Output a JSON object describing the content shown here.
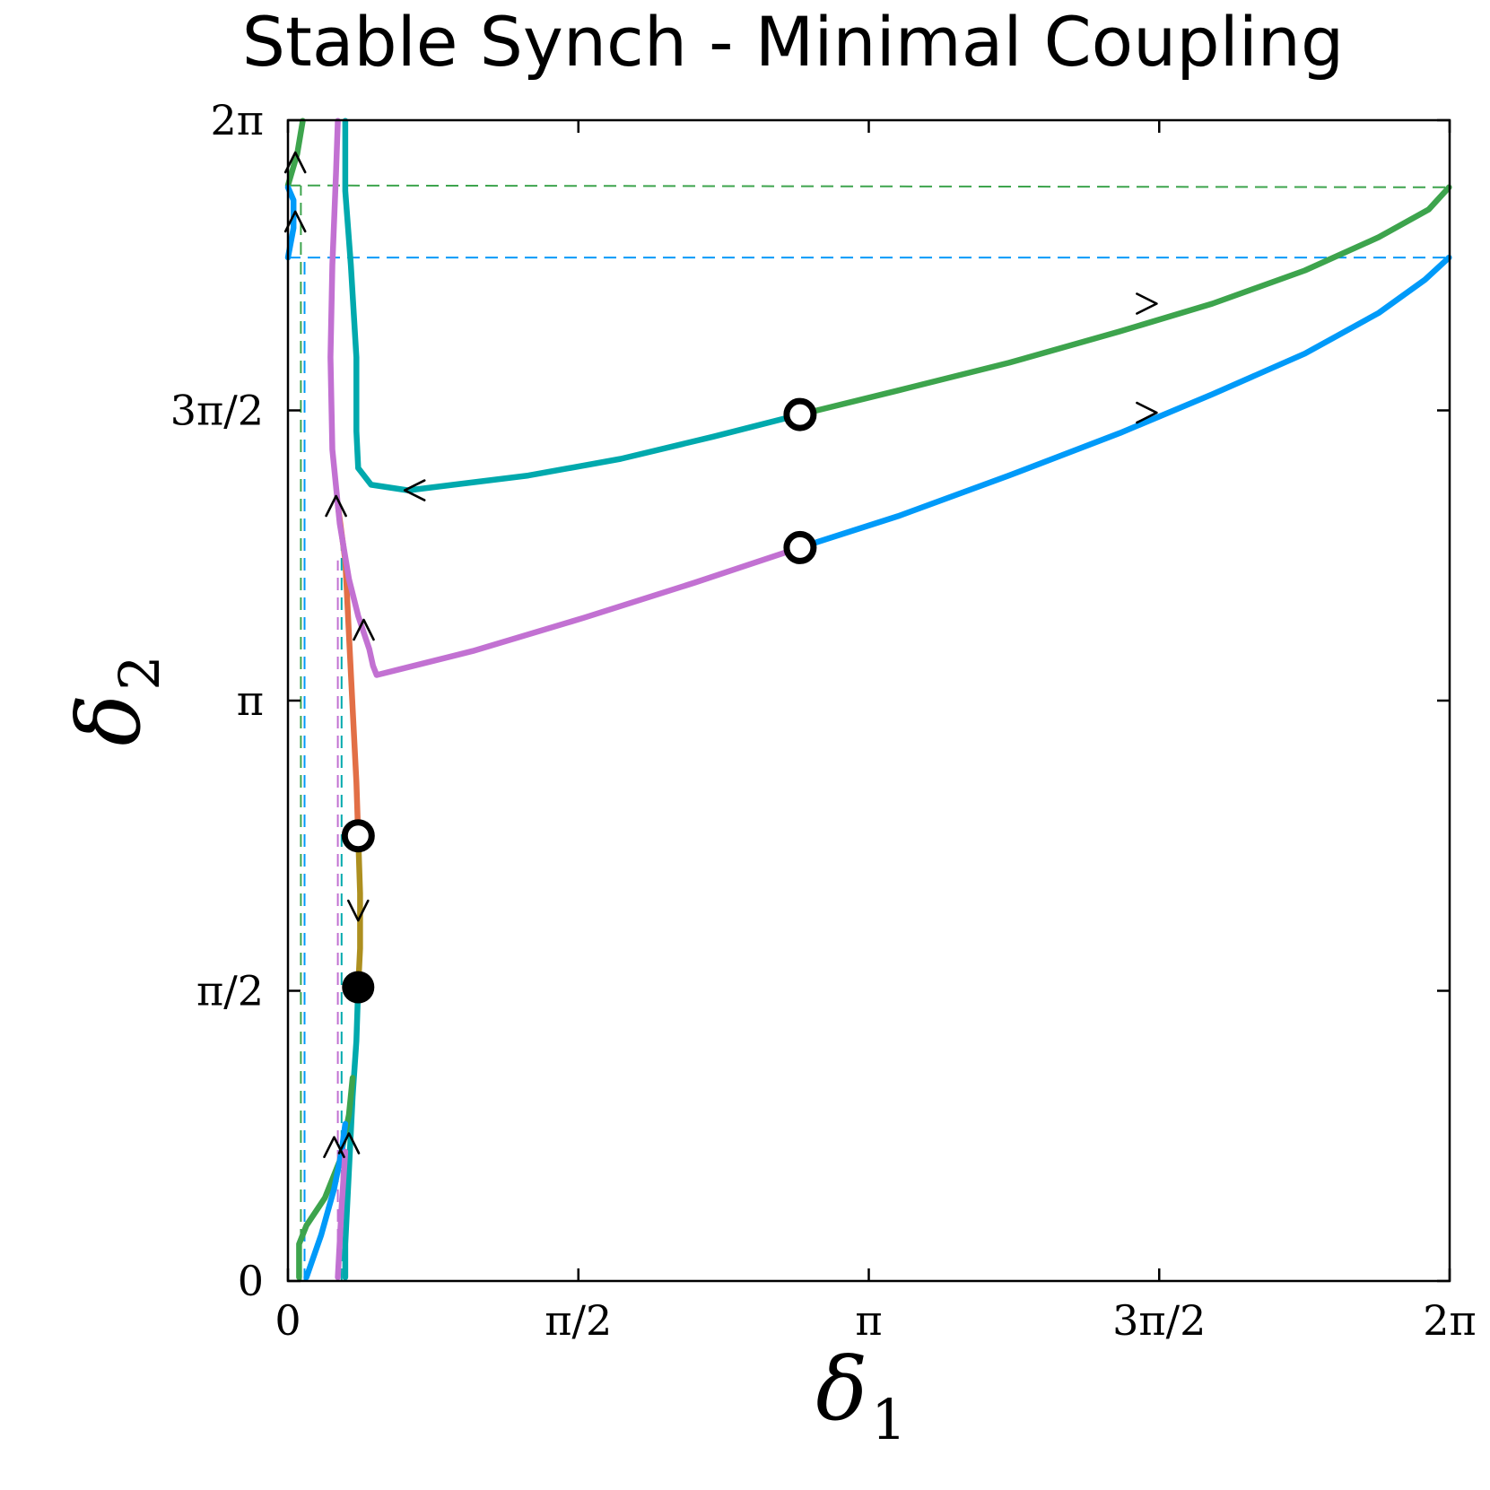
{
  "chart_data": {
    "type": "line",
    "title": "Stable Synch - Minimal Coupling",
    "xlabel": {
      "symbol": "δ",
      "subscript": "1"
    },
    "ylabel": {
      "symbol": "δ",
      "subscript": "2"
    },
    "xlim": [
      0,
      6.2832
    ],
    "ylim": [
      0,
      6.2832
    ],
    "grid": false,
    "legend": "none",
    "x_ticks": [
      {
        "value": 0,
        "label": "0"
      },
      {
        "value": 1.5708,
        "label": "π/2"
      },
      {
        "value": 3.1416,
        "label": "π"
      },
      {
        "value": 4.7124,
        "label": "3π/2"
      },
      {
        "value": 6.2832,
        "label": "2π"
      }
    ],
    "y_ticks": [
      {
        "value": 0,
        "label": "0"
      },
      {
        "value": 1.5708,
        "label": "π/2"
      },
      {
        "value": 3.1416,
        "label": "π"
      },
      {
        "value": 4.7124,
        "label": "3π/2"
      },
      {
        "value": 6.2832,
        "label": "2π"
      }
    ],
    "series": [
      {
        "color": "#e26f46",
        "width": 5,
        "points": [
          [
            0.38,
            2.41
          ],
          [
            0.37,
            2.7
          ],
          [
            0.35,
            3.1
          ],
          [
            0.33,
            3.5
          ],
          [
            0.31,
            3.9
          ],
          [
            0.27,
            4.2
          ]
        ]
      },
      {
        "color": "#ad8f1f",
        "width": 5,
        "points": [
          [
            0.38,
            2.41
          ],
          [
            0.39,
            2.1
          ],
          [
            0.39,
            1.8
          ],
          [
            0.38,
            1.59
          ]
        ]
      },
      {
        "color": "#00a9ad",
        "width": 5,
        "points": [
          [
            0.38,
            1.59
          ],
          [
            0.37,
            1.3
          ],
          [
            0.35,
            1.0
          ],
          [
            0.33,
            0.6
          ],
          [
            0.31,
            0.2
          ],
          [
            0.31,
            0.02
          ]
        ]
      },
      {
        "color": "#00a9ad",
        "width": 5,
        "points": [
          [
            2.77,
            4.69
          ],
          [
            2.3,
            4.57
          ],
          [
            1.8,
            4.45
          ],
          [
            1.3,
            4.36
          ],
          [
            0.65,
            4.28
          ],
          [
            0.45,
            4.31
          ],
          [
            0.38,
            4.4
          ],
          [
            0.37,
            4.6
          ],
          [
            0.37,
            5.0
          ],
          [
            0.34,
            5.5
          ],
          [
            0.31,
            5.9
          ],
          [
            0.31,
            6.28
          ]
        ]
      },
      {
        "color": "#3da44d",
        "width": 5,
        "points": [
          [
            2.77,
            4.69
          ],
          [
            3.3,
            4.82
          ],
          [
            3.9,
            4.97
          ],
          [
            4.5,
            5.14
          ],
          [
            5.0,
            5.29
          ],
          [
            5.5,
            5.47
          ],
          [
            5.9,
            5.65
          ],
          [
            6.17,
            5.8
          ],
          [
            6.28,
            5.92
          ]
        ]
      },
      {
        "color": "#3da44d",
        "width": 5,
        "points": [
          [
            0.06,
            0.02
          ],
          [
            0.06,
            0.2
          ],
          [
            0.1,
            0.3
          ],
          [
            0.2,
            0.45
          ],
          [
            0.28,
            0.65
          ],
          [
            0.33,
            0.9
          ],
          [
            0.35,
            1.1
          ]
        ]
      },
      {
        "color": "#3da44d",
        "width": 5,
        "points": [
          [
            0.0,
            5.93
          ],
          [
            0.05,
            6.1
          ],
          [
            0.08,
            6.28
          ]
        ]
      },
      {
        "color": "#009af9",
        "width": 5,
        "points": [
          [
            2.77,
            3.97
          ],
          [
            3.3,
            4.14
          ],
          [
            3.9,
            4.36
          ],
          [
            4.5,
            4.59
          ],
          [
            5.0,
            4.8
          ],
          [
            5.5,
            5.02
          ],
          [
            5.9,
            5.24
          ],
          [
            6.15,
            5.42
          ],
          [
            6.28,
            5.54
          ]
        ]
      },
      {
        "color": "#009af9",
        "width": 5,
        "points": [
          [
            0.1,
            0.02
          ],
          [
            0.18,
            0.25
          ],
          [
            0.25,
            0.5
          ],
          [
            0.29,
            0.7
          ],
          [
            0.31,
            0.85
          ]
        ]
      },
      {
        "color": "#009af9",
        "width": 5,
        "points": [
          [
            0.0,
            5.54
          ],
          [
            0.03,
            5.7
          ],
          [
            0.03,
            5.85
          ],
          [
            0.0,
            5.92
          ]
        ]
      },
      {
        "color": "#c271d2",
        "width": 5,
        "points": [
          [
            2.77,
            3.97
          ],
          [
            2.2,
            3.78
          ],
          [
            1.6,
            3.59
          ],
          [
            1.0,
            3.41
          ],
          [
            0.6,
            3.31
          ],
          [
            0.48,
            3.28
          ],
          [
            0.46,
            3.33
          ],
          [
            0.44,
            3.42
          ],
          [
            0.38,
            3.6
          ],
          [
            0.33,
            3.8
          ],
          [
            0.28,
            4.1
          ],
          [
            0.24,
            4.5
          ],
          [
            0.23,
            5.0
          ],
          [
            0.24,
            5.5
          ],
          [
            0.26,
            6.0
          ],
          [
            0.27,
            6.28
          ]
        ]
      },
      {
        "color": "#c271d2",
        "width": 5,
        "points": [
          [
            0.27,
            0.02
          ],
          [
            0.29,
            0.4
          ],
          [
            0.31,
            0.7
          ]
        ]
      }
    ],
    "dashed_lines": [
      {
        "color": "#3da44d",
        "points": [
          [
            0.0,
            5.93
          ],
          [
            6.28,
            5.92
          ]
        ]
      },
      {
        "color": "#009af9",
        "points": [
          [
            0.0,
            5.54
          ],
          [
            6.28,
            5.54
          ]
        ]
      },
      {
        "color": "#3da44d",
        "points": [
          [
            0.07,
            0
          ],
          [
            0.07,
            5.93
          ]
        ]
      },
      {
        "color": "#009af9",
        "points": [
          [
            0.09,
            0
          ],
          [
            0.09,
            5.54
          ]
        ]
      },
      {
        "color": "#c271d2",
        "points": [
          [
            0.27,
            0
          ],
          [
            0.27,
            3.9
          ]
        ]
      },
      {
        "color": "#00a9ad",
        "points": [
          [
            0.29,
            0
          ],
          [
            0.29,
            4.1
          ]
        ]
      }
    ],
    "equilibria": [
      {
        "x": 2.77,
        "y": 4.69,
        "type": "unstable"
      },
      {
        "x": 2.77,
        "y": 3.97,
        "type": "unstable"
      },
      {
        "x": 0.38,
        "y": 2.41,
        "type": "unstable"
      },
      {
        "x": 0.38,
        "y": 1.59,
        "type": "stable"
      }
    ],
    "arrows": [
      {
        "x": 4.65,
        "y": 5.29,
        "direction": "right"
      },
      {
        "x": 4.65,
        "y": 4.7,
        "direction": "right"
      },
      {
        "x": 0.68,
        "y": 4.28,
        "direction": "left"
      },
      {
        "x": 0.38,
        "y": 2.0,
        "direction": "down"
      },
      {
        "x": 0.41,
        "y": 3.53,
        "direction": "up"
      },
      {
        "x": 0.26,
        "y": 4.2,
        "direction": "up"
      },
      {
        "x": 0.25,
        "y": 0.73,
        "direction": "up"
      },
      {
        "x": 0.33,
        "y": 0.75,
        "direction": "up"
      },
      {
        "x": 0.04,
        "y": 6.06,
        "direction": "up"
      },
      {
        "x": 0.04,
        "y": 5.74,
        "direction": "up"
      }
    ]
  }
}
